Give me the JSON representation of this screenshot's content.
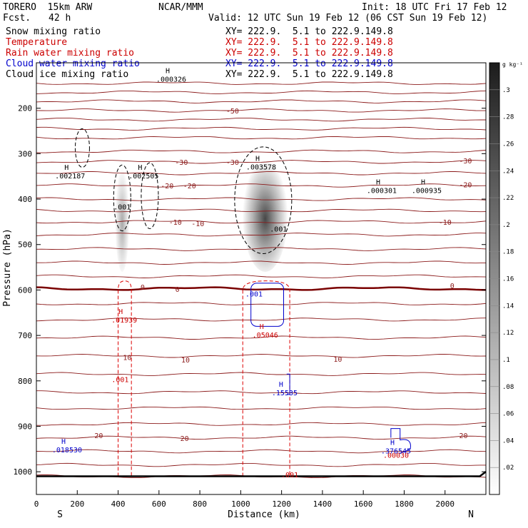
{
  "header": {
    "model": "TORERO  15km ARW",
    "fcst_label": "Fcst.",
    "fcst_value": "42 h",
    "center": "NCAR/MMM",
    "init": "Init: 18 UTC Fri 17 Feb 12",
    "valid": "Valid: 12 UTC Sun 19 Feb 12 (06 CST Sun 19 Feb 12)"
  },
  "legend": [
    {
      "name": "Snow mixing ratio",
      "range": "XY= 222.9.  5.1 to 222.9.149.8",
      "color": "#000000"
    },
    {
      "name": "Temperature",
      "range": "XY= 222.9.  5.1 to 222.9.149.8",
      "color": "#cc0000"
    },
    {
      "name": "Rain water mixing ratio",
      "range": "XY= 222.9.  5.1 to 222.9.149.8",
      "color": "#cc0000"
    },
    {
      "name": "Cloud water mixing ratio",
      "range": "XY= 222.9.  5.1 to 222.9.149.8",
      "color": "#0000cc"
    },
    {
      "name": "Cloud ice mixing ratio",
      "range": "XY= 222.9.  5.1 to 222.9.149.8",
      "color": "#000000"
    }
  ],
  "chart_data": {
    "type": "contour cross-section",
    "xlabel": "Distance (km)",
    "ylabel": "Pressure (hPa)",
    "xlim": [
      0,
      2200
    ],
    "ylim": [
      1050,
      100
    ],
    "xticks": [
      0,
      200,
      400,
      600,
      800,
      1000,
      1200,
      1400,
      1600,
      1800,
      2000
    ],
    "yticks": [
      200,
      300,
      400,
      500,
      600,
      700,
      800,
      900,
      1000
    ],
    "end_labels": {
      "left": "S",
      "right": "N"
    },
    "colorbar": {
      "unit": "g kg⁻¹",
      "ticks": [
        ".3",
        ".28",
        ".26",
        ".24",
        ".22",
        ".2",
        ".18",
        ".16",
        ".14",
        ".12",
        ".1",
        ".08",
        ".06",
        ".04",
        ".02"
      ]
    },
    "snow_cores": [
      {
        "x": 420,
        "ptop": 320,
        "pbot": 560,
        "intensity": 0.4
      },
      {
        "x": 1120,
        "ptop": 300,
        "pbot": 560,
        "intensity": 0.85
      }
    ],
    "temperature_labels": [
      {
        "text": "-50",
        "x": 960,
        "p": 205
      },
      {
        "text": "-30",
        "x": 710,
        "p": 318
      },
      {
        "text": "-30",
        "x": 960,
        "p": 318
      },
      {
        "text": "-30",
        "x": 2100,
        "p": 315
      },
      {
        "text": "-20",
        "x": 640,
        "p": 370
      },
      {
        "text": "-20",
        "x": 2100,
        "p": 368
      },
      {
        "text": "-20",
        "x": 750,
        "p": 370
      },
      {
        "text": "-10",
        "x": 680,
        "p": 450
      },
      {
        "text": "-10",
        "x": 790,
        "p": 453
      },
      {
        "text": "-10",
        "x": 2000,
        "p": 450
      },
      {
        "text": "0",
        "x": 520,
        "p": 593
      },
      {
        "text": "0",
        "x": 690,
        "p": 598
      },
      {
        "text": "0",
        "x": 2035,
        "p": 590
      },
      {
        "text": "10",
        "x": 445,
        "p": 748
      },
      {
        "text": "10",
        "x": 730,
        "p": 753
      },
      {
        "text": "10",
        "x": 1475,
        "p": 752
      },
      {
        "text": "20",
        "x": 305,
        "p": 920
      },
      {
        "text": "20",
        "x": 725,
        "p": 926
      },
      {
        "text": "20",
        "x": 2090,
        "p": 920
      }
    ],
    "maxima_labels": [
      {
        "mark": "H",
        "value": ".000326",
        "x": 660,
        "p": 132,
        "color": "#000000"
      },
      {
        "mark": "H",
        "value": ".002187",
        "x": 165,
        "p": 345,
        "color": "#000000"
      },
      {
        "mark": "H",
        "value": ".002505",
        "x": 525,
        "p": 345,
        "color": "#000000"
      },
      {
        "mark": "H",
        "value": ".003578",
        "x": 1100,
        "p": 325,
        "color": "#000000"
      },
      {
        "mark": "H",
        "value": ".000301",
        "x": 1690,
        "p": 377,
        "color": "#000000"
      },
      {
        "mark": "H",
        "value": ".000935",
        "x": 1910,
        "p": 377,
        "color": "#000000"
      },
      {
        "mark": "",
        "value": ".001",
        "x": 420,
        "p": 413,
        "color": "#000000"
      },
      {
        "mark": "",
        "value": ".001",
        "x": 1185,
        "p": 462,
        "color": "#000000"
      },
      {
        "mark": "",
        "value": ".001",
        "x": 1065,
        "p": 605,
        "color": "#0000cc"
      },
      {
        "mark": "H",
        "value": ".01939",
        "x": 430,
        "p": 662,
        "color": "#cc0000"
      },
      {
        "mark": "H",
        "value": ".05046",
        "x": 1120,
        "p": 695,
        "color": "#cc0000"
      },
      {
        "mark": "",
        "value": ".001",
        "x": 410,
        "p": 793,
        "color": "#cc0000"
      },
      {
        "mark": "H",
        "value": ".15535",
        "x": 1215,
        "p": 822,
        "color": "#0000cc"
      },
      {
        "mark": "H",
        "value": ".018530",
        "x": 150,
        "p": 948,
        "color": "#0000cc"
      },
      {
        "mark": "H",
        "value": ".376545",
        "x": 1760,
        "p": 950,
        "color": "#0000cc"
      },
      {
        "mark": "",
        "value": ".00030",
        "x": 1760,
        "p": 960,
        "color": "#cc0000"
      },
      {
        "mark": "",
        "value": ".001",
        "x": 1240,
        "p": 1003,
        "color": "#cc0000"
      }
    ]
  }
}
